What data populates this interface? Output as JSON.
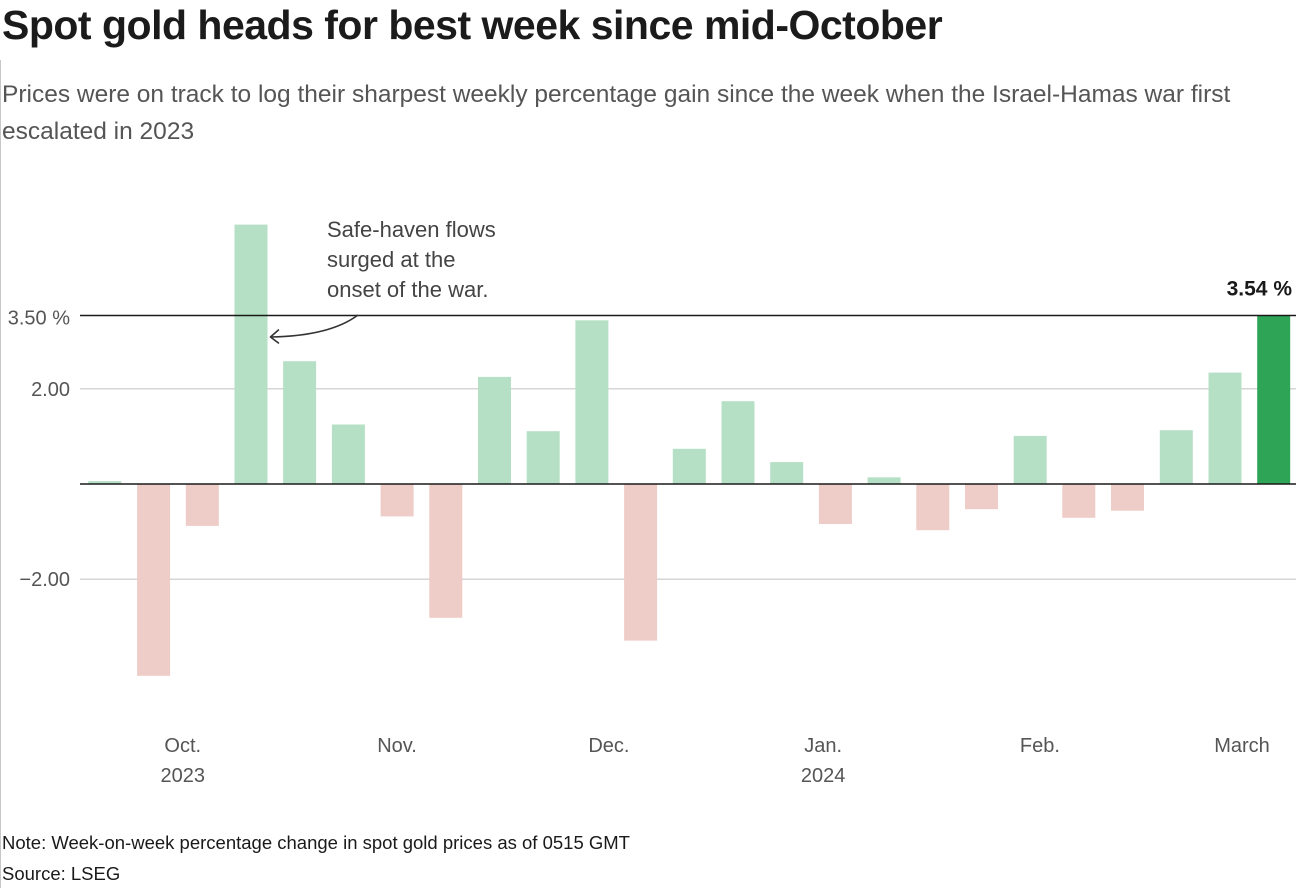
{
  "title": "Spot gold heads for best week since mid-October",
  "subtitle": "Prices were on track to log their sharpest weekly percentage gain since the week when the Israel-Hamas war first escalated in 2023",
  "note": "Note: Week-on-week percentage change in spot gold prices as of 0515 GMT",
  "source": "Source: LSEG",
  "colors": {
    "positive": "#b6e0c5",
    "negative": "#eeccc7",
    "highlight": "#2ea556",
    "gridline": "#c8c8c8",
    "reference_line": "#1a1a1a"
  },
  "chart_data": {
    "type": "bar",
    "title": "Spot gold heads for best week since mid-October",
    "xlabel": "",
    "ylabel": "",
    "ylim": [
      -4.5,
      5.5
    ],
    "yticks": [
      {
        "value": 3.5,
        "label": "3.50 %"
      },
      {
        "value": 2.0,
        "label": "2.00"
      },
      {
        "value": -2.0,
        "label": "−2.00"
      }
    ],
    "grid": true,
    "series": [
      {
        "name": "Week-on-week % change",
        "values": [
          0.06,
          -4.03,
          -0.88,
          5.45,
          2.58,
          1.25,
          -0.68,
          -2.81,
          2.25,
          1.11,
          3.44,
          -3.29,
          0.74,
          1.74,
          0.46,
          -0.84,
          0.14,
          -0.97,
          -0.53,
          1.01,
          -0.71,
          -0.56,
          1.13,
          2.34,
          3.54
        ]
      }
    ],
    "month_labels": [
      {
        "label": "Oct.",
        "year": "2023",
        "at_index": 1.6
      },
      {
        "label": "Nov.",
        "year": "",
        "at_index": 6.0
      },
      {
        "label": "Dec.",
        "year": "",
        "at_index": 10.35
      },
      {
        "label": "Jan.",
        "year": "2024",
        "at_index": 14.75
      },
      {
        "label": "Feb.",
        "year": "",
        "at_index": 19.2
      },
      {
        "label": "March",
        "year": "",
        "at_index": 23.35
      }
    ],
    "reference_line": {
      "value": 3.54
    },
    "callout": {
      "text": "3.54 %",
      "bar_index": 24
    },
    "annotation": {
      "lines": [
        "Safe-haven flows",
        "surged at the",
        "onset of the war."
      ],
      "points_to_index": 3
    }
  }
}
